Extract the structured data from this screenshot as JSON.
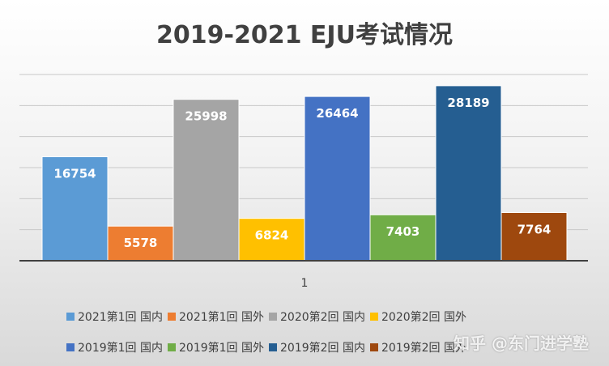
{
  "title": "2019-2021 EJU考试情况",
  "watermark": "知乎 @东门进学塾",
  "chart_data": {
    "type": "bar",
    "title": "2019-2021 EJU考试情况",
    "categories": [
      "1"
    ],
    "xlabel": "",
    "ylabel": "",
    "ylim": [
      0,
      30000
    ],
    "grid": true,
    "legend_position": "bottom",
    "series": [
      {
        "name": "2021第1回 国内",
        "values": [
          16754
        ],
        "color": "#5b9bd5"
      },
      {
        "name": "2021第1回 国外",
        "values": [
          5578
        ],
        "color": "#ed7d31"
      },
      {
        "name": "2020第2回 国内",
        "values": [
          25998
        ],
        "color": "#a5a5a5"
      },
      {
        "name": "2020第2回 国外",
        "values": [
          6824
        ],
        "color": "#ffc000"
      },
      {
        "name": "2019第1回 国内",
        "values": [
          26464
        ],
        "color": "#4472c4"
      },
      {
        "name": "2019第1回 国外",
        "values": [
          7403
        ],
        "color": "#70ad47"
      },
      {
        "name": "2019第2回 国内",
        "values": [
          28189
        ],
        "color": "#255e91"
      },
      {
        "name": "2019第2回 国外",
        "values": [
          7764
        ],
        "color": "#9e480e"
      }
    ]
  }
}
